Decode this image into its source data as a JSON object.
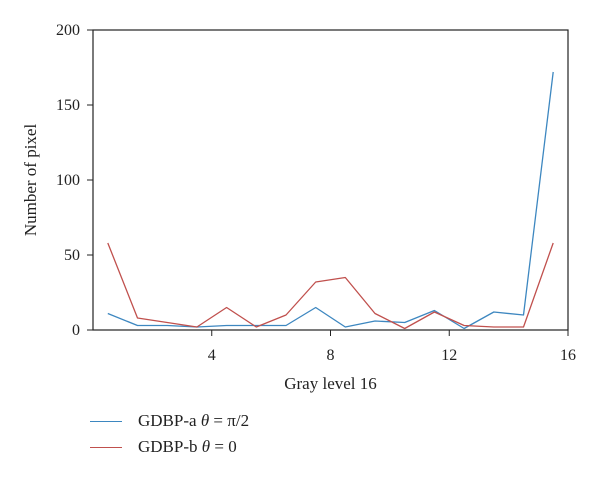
{
  "chart_data": {
    "type": "line",
    "xlabel": "Gray level 16",
    "ylabel": "Number of pixel",
    "xlim": [
      0,
      16
    ],
    "ylim": [
      0,
      200
    ],
    "xticks": [
      4,
      8,
      12,
      16
    ],
    "yticks": [
      0,
      50,
      100,
      150,
      200
    ],
    "grid": false,
    "legend_position": "bottom-left",
    "x": [
      0.5,
      1.5,
      2.5,
      3.5,
      4.5,
      5.5,
      6.5,
      7.5,
      8.5,
      9.5,
      10.5,
      11.5,
      12.5,
      13.5,
      14.5,
      15.5
    ],
    "series": [
      {
        "name": "GDBP-a θ = π/2",
        "name_prefix": "GDBP-a ",
        "name_var": "θ",
        "name_rest": " = π/2",
        "color": "#3d87c0",
        "values": [
          11,
          3,
          3,
          2,
          3,
          3,
          3,
          15,
          2,
          6,
          5,
          13,
          1,
          12,
          10,
          172
        ]
      },
      {
        "name": "GDBP-b θ = 0",
        "name_prefix": "GDBP-b ",
        "name_var": "θ",
        "name_rest": " = 0",
        "color": "#c0504d",
        "values": [
          58,
          8,
          5,
          2,
          15,
          2,
          10,
          32,
          35,
          11,
          1,
          12,
          3,
          2,
          2,
          58
        ]
      }
    ]
  }
}
